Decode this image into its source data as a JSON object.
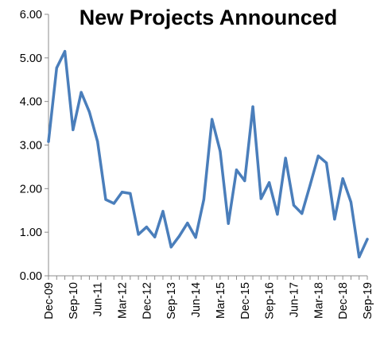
{
  "chart_data": {
    "type": "line",
    "title": "New Projects Announced",
    "xlabel": "",
    "ylabel": "",
    "ylim": [
      0,
      6
    ],
    "yticks": [
      "0.00",
      "1.00",
      "2.00",
      "3.00",
      "4.00",
      "5.00",
      "6.00"
    ],
    "xticks": [
      "Dec-09",
      "Sep-10",
      "Jun-11",
      "Mar-12",
      "Dec-12",
      "Sep-13",
      "Jun-14",
      "Mar-15",
      "Dec-15",
      "Sep-16",
      "Jun-17",
      "Mar-18",
      "Dec-18",
      "Sep-19"
    ],
    "grid": false,
    "legend": "none",
    "x": [
      "Dec-09",
      "Mar-10",
      "Jun-10",
      "Sep-10",
      "Dec-10",
      "Mar-11",
      "Jun-11",
      "Sep-11",
      "Dec-11",
      "Mar-12",
      "Jun-12",
      "Sep-12",
      "Dec-12",
      "Mar-13",
      "Jun-13",
      "Sep-13",
      "Dec-13",
      "Mar-14",
      "Jun-14",
      "Sep-14",
      "Dec-14",
      "Mar-15",
      "Jun-15",
      "Sep-15",
      "Dec-15",
      "Mar-16",
      "Jun-16",
      "Sep-16",
      "Dec-16",
      "Mar-17",
      "Jun-17",
      "Sep-17",
      "Dec-17",
      "Mar-18",
      "Jun-18",
      "Sep-18",
      "Dec-18",
      "Mar-19",
      "Jun-19",
      "Sep-19"
    ],
    "series": [
      {
        "color": "#4a7ebb",
        "values": [
          3.08,
          4.77,
          5.15,
          3.35,
          4.21,
          3.76,
          3.08,
          1.75,
          1.66,
          1.92,
          1.89,
          0.95,
          1.12,
          0.89,
          1.48,
          0.66,
          0.91,
          1.21,
          0.88,
          1.75,
          3.59,
          2.86,
          1.2,
          2.43,
          2.18,
          3.88,
          1.77,
          2.14,
          1.41,
          2.7,
          1.62,
          1.43,
          2.08,
          2.75,
          2.59,
          1.3,
          2.23,
          1.69,
          0.43,
          0.84
        ]
      }
    ]
  }
}
